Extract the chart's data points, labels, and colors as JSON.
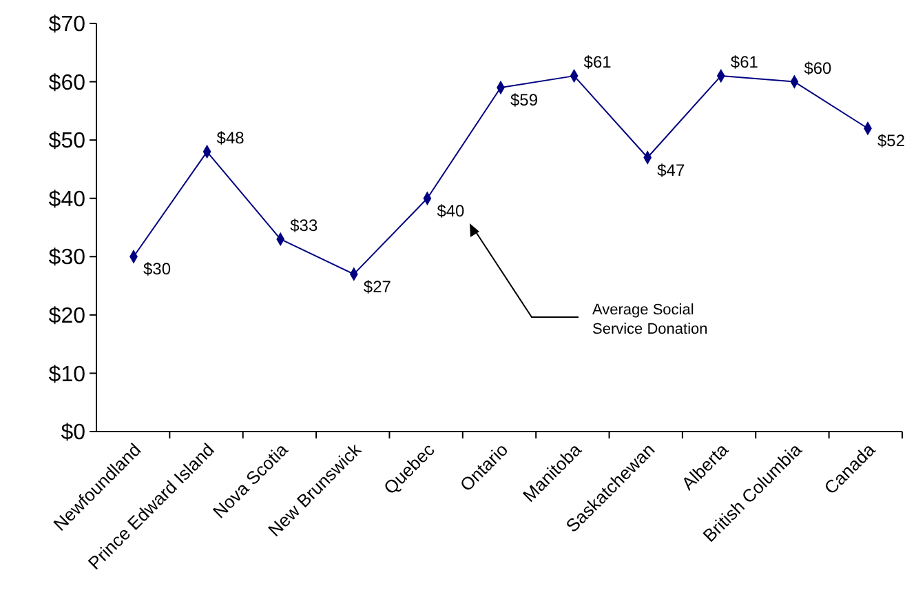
{
  "chart_data": {
    "type": "line",
    "categories": [
      "Newfoundland",
      "Prince Edward Island",
      "Nova Scotia",
      "New Brunswick",
      "Quebec",
      "Ontario",
      "Manitoba",
      "Saskatchewan",
      "Alberta",
      "British Columbia",
      "Canada"
    ],
    "series": [
      {
        "color": "#000080",
        "values": [
          30,
          48,
          33,
          27,
          40,
          59,
          61,
          47,
          61,
          60,
          52
        ],
        "value_labels": [
          "$30",
          "$48",
          "$33",
          "$27",
          "$40",
          "$59",
          "$61",
          "$47",
          "$61",
          "$60",
          "$52"
        ]
      }
    ],
    "ylim": [
      0,
      70
    ],
    "yticks": [
      {
        "value": 0,
        "label": "$0"
      },
      {
        "value": 10,
        "label": "$10"
      },
      {
        "value": 20,
        "label": "$20"
      },
      {
        "value": 30,
        "label": "$30"
      },
      {
        "value": 40,
        "label": "$40"
      },
      {
        "value": 50,
        "label": "$50"
      },
      {
        "value": 60,
        "label": "$60"
      },
      {
        "value": 70,
        "label": "$70"
      }
    ],
    "marker": "diamond",
    "grid": false,
    "annotations": [
      "Average Social Service Donation"
    ]
  }
}
